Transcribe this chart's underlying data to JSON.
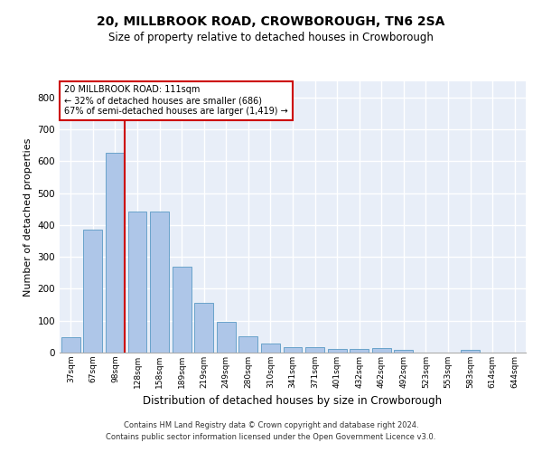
{
  "title": "20, MILLBROOK ROAD, CROWBOROUGH, TN6 2SA",
  "subtitle": "Size of property relative to detached houses in Crowborough",
  "xlabel": "Distribution of detached houses by size in Crowborough",
  "ylabel": "Number of detached properties",
  "categories": [
    "37sqm",
    "67sqm",
    "98sqm",
    "128sqm",
    "158sqm",
    "189sqm",
    "219sqm",
    "249sqm",
    "280sqm",
    "310sqm",
    "341sqm",
    "371sqm",
    "401sqm",
    "432sqm",
    "462sqm",
    "492sqm",
    "523sqm",
    "553sqm",
    "583sqm",
    "614sqm",
    "644sqm"
  ],
  "values": [
    47,
    385,
    625,
    443,
    443,
    270,
    155,
    97,
    52,
    29,
    18,
    17,
    11,
    11,
    14,
    8,
    0,
    0,
    8,
    0,
    0
  ],
  "bar_color": "#aec6e8",
  "bar_edge_color": "#5a9ac5",
  "vline_color": "#cc0000",
  "box_edge_color": "#cc0000",
  "background_color": "#e8eef8",
  "grid_color": "#ffffff",
  "annotation_box_text": "20 MILLBROOK ROAD: 111sqm\n← 32% of detached houses are smaller (686)\n67% of semi-detached houses are larger (1,419) →",
  "footnote": "Contains HM Land Registry data © Crown copyright and database right 2024.\nContains public sector information licensed under the Open Government Licence v3.0.",
  "ylim": [
    0,
    850
  ],
  "yticks": [
    0,
    100,
    200,
    300,
    400,
    500,
    600,
    700,
    800
  ],
  "title_fontsize": 10,
  "subtitle_fontsize": 8.5,
  "ylabel_fontsize": 8,
  "xlabel_fontsize": 8.5
}
